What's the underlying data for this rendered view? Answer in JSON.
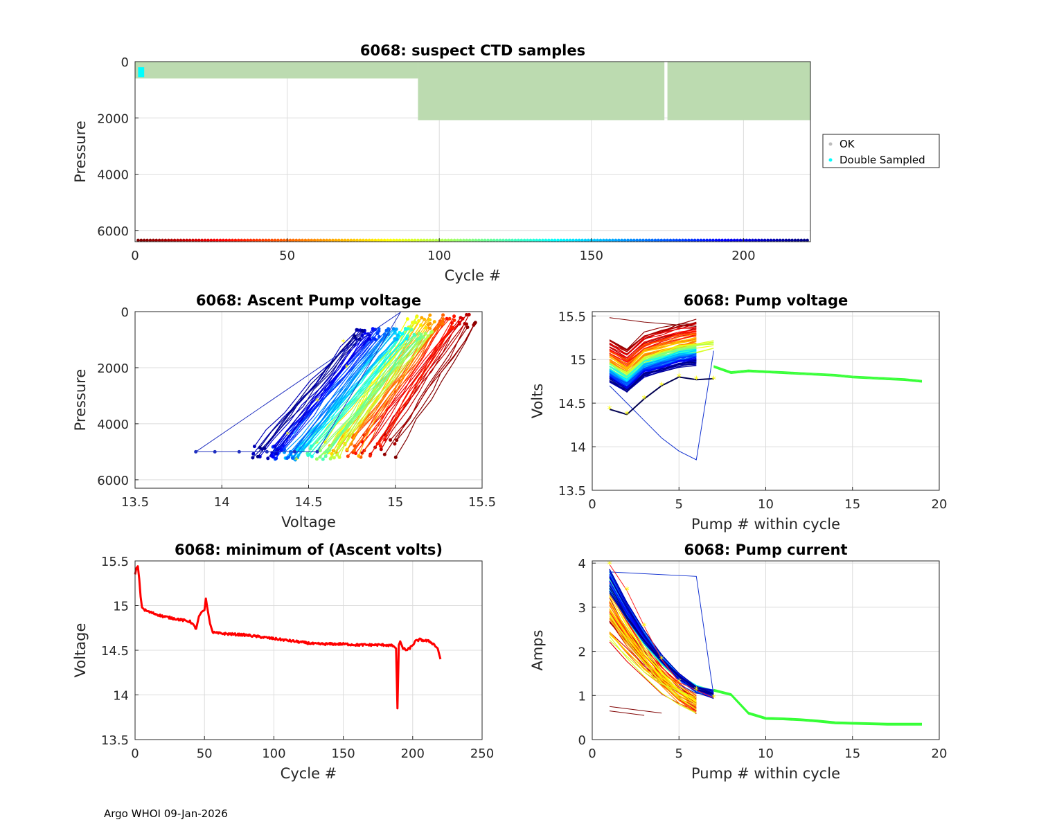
{
  "footer": "Argo WHOI 09-Jan-2026",
  "colors": {
    "ok_green": "#bcdbb0",
    "double_cyan": "#00ffff",
    "grid": "#dcdcdc",
    "axis": "#262626",
    "min_line": "#ff0000",
    "green_line": "#33ff33",
    "yellow_mark": "#ffff00",
    "dark_blue": "#0000aa"
  },
  "chart_data": [
    {
      "id": "ctd",
      "type": "scatter",
      "title": "6068: suspect CTD samples",
      "xlabel": "Cycle #",
      "ylabel": "Pressure",
      "xlim": [
        0,
        222
      ],
      "ylim": [
        0,
        6400
      ],
      "y_reversed": true,
      "xticks": [
        0,
        50,
        100,
        150,
        200
      ],
      "yticks": [
        0,
        2000,
        4000,
        6000
      ],
      "ok_regions": [
        {
          "x_start": 0,
          "x_end": 93,
          "pressure_max": 600
        },
        {
          "x_start": 93,
          "x_end": 174,
          "pressure_max": 2080
        },
        {
          "x_start": 175,
          "x_end": 222,
          "pressure_max": 2080
        }
      ],
      "double_sampled_regions": [
        {
          "x_start": 1,
          "x_end": 3,
          "pressure_min": 200,
          "pressure_max": 550
        }
      ],
      "legend": {
        "position": "outside-right",
        "entries": [
          "OK",
          "Double Sampled"
        ]
      },
      "cycle_marker_pressure": 6350
    },
    {
      "id": "ascent",
      "type": "line",
      "title": "6068: Ascent Pump voltage",
      "xlabel": "Voltage",
      "ylabel": "Pressure",
      "xlim": [
        13.5,
        15.5
      ],
      "ylim": [
        0,
        6300
      ],
      "y_reversed": true,
      "xticks": [
        13.5,
        14,
        14.5,
        15,
        15.5
      ],
      "yticks": [
        0,
        2000,
        4000,
        6000
      ],
      "series_note": "one line per cycle, colored by cycle number (dark red early to dark blue late)",
      "outlier_series": {
        "x": [
          13.85,
          13.96,
          14.1,
          14.26,
          14.42,
          14.55
        ],
        "y": [
          5000,
          5000,
          5000,
          5000,
          5000,
          5000
        ]
      }
    },
    {
      "id": "pumpv",
      "type": "line",
      "title": "6068: Pump voltage",
      "xlabel": "Pump # within cycle",
      "ylabel": "Volts",
      "xlim": [
        0,
        20
      ],
      "ylim": [
        13.5,
        15.55
      ],
      "xticks": [
        0,
        5,
        10,
        15,
        20
      ],
      "yticks": [
        13.5,
        14,
        14.5,
        15,
        15.5
      ],
      "green_series": {
        "x": [
          7,
          8,
          9,
          10,
          11,
          12,
          13,
          14,
          15,
          16,
          17,
          18,
          19
        ],
        "y": [
          14.92,
          14.85,
          14.87,
          14.86,
          14.85,
          14.84,
          14.83,
          14.82,
          14.8,
          14.79,
          14.78,
          14.77,
          14.75
        ]
      },
      "outlier_series": {
        "x": [
          1,
          2,
          3,
          4,
          5,
          6,
          7
        ],
        "y": [
          14.7,
          14.5,
          14.3,
          14.1,
          13.95,
          13.85,
          15.1
        ]
      },
      "yellow_markers": {
        "x": [
          1,
          2,
          3,
          4,
          5,
          6,
          7
        ],
        "y": [
          14.43,
          14.37,
          14.55,
          14.7,
          14.8,
          14.77,
          14.77
        ]
      }
    },
    {
      "id": "minv",
      "type": "line",
      "title": "6068: minimum of (Ascent volts)",
      "xlabel": "Cycle #",
      "ylabel": "Voltage",
      "xlim": [
        0,
        250
      ],
      "ylim": [
        13.5,
        15.5
      ],
      "xticks": [
        0,
        50,
        100,
        150,
        200,
        250
      ],
      "yticks": [
        13.5,
        14,
        14.5,
        15,
        15.5
      ],
      "series": {
        "name": "min ascent volts",
        "x": [
          0,
          1,
          2,
          3,
          4,
          5,
          7,
          10,
          20,
          30,
          40,
          44,
          46,
          48,
          50,
          51,
          52,
          54,
          56,
          60,
          70,
          80,
          90,
          100,
          110,
          120,
          130,
          140,
          150,
          160,
          170,
          180,
          186,
          188,
          189,
          190,
          191,
          193,
          196,
          199,
          202,
          205,
          208,
          212,
          215,
          218,
          220
        ],
        "y": [
          15.35,
          15.42,
          15.44,
          15.3,
          15.1,
          14.98,
          14.95,
          14.93,
          14.88,
          14.85,
          14.82,
          14.74,
          14.88,
          14.93,
          14.95,
          15.08,
          14.98,
          14.8,
          14.7,
          14.69,
          14.68,
          14.67,
          14.65,
          14.63,
          14.61,
          14.59,
          14.57,
          14.57,
          14.57,
          14.56,
          14.56,
          14.56,
          14.55,
          14.52,
          13.85,
          14.56,
          14.6,
          14.52,
          14.5,
          14.54,
          14.6,
          14.62,
          14.61,
          14.6,
          14.57,
          14.52,
          14.4
        ]
      }
    },
    {
      "id": "current",
      "type": "line",
      "title": "6068: Pump current",
      "xlabel": "Pump # within cycle",
      "ylabel": "Amps",
      "xlim": [
        0,
        20
      ],
      "ylim": [
        0,
        4.05
      ],
      "xticks": [
        0,
        5,
        10,
        15,
        20
      ],
      "yticks": [
        0,
        1,
        2,
        3,
        4
      ],
      "green_series": {
        "x": [
          7,
          8,
          9,
          10,
          11,
          12,
          13,
          14,
          15,
          16,
          17,
          18,
          19
        ],
        "y": [
          1.12,
          1.02,
          0.6,
          0.48,
          0.47,
          0.45,
          0.42,
          0.38,
          0.37,
          0.36,
          0.35,
          0.35,
          0.35
        ]
      },
      "outlier_series": {
        "x": [
          1,
          6,
          7,
          6,
          5
        ],
        "y": [
          3.8,
          3.7,
          1.0,
          1.05,
          1.25
        ]
      },
      "yellow_markers": {
        "x": [
          1,
          2,
          3,
          4,
          5,
          6,
          7
        ],
        "y": [
          3.97,
          3.38,
          2.57,
          1.82,
          1.3,
          1.12,
          0.95
        ]
      }
    }
  ]
}
